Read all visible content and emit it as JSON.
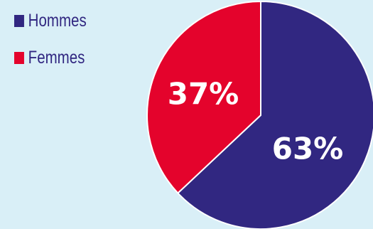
{
  "colors": {
    "background": "#d9eff7",
    "hommes": "#312781",
    "femmes": "#e4032c",
    "label": "#ffffff",
    "slice_border": "#ffffff"
  },
  "chart_data": {
    "type": "pie",
    "title": "",
    "categories": [
      "Hommes",
      "Femmes"
    ],
    "values": [
      63,
      37
    ],
    "labels": [
      "63%",
      "37%"
    ],
    "start_angle_deg": 0,
    "direction": "clockwise",
    "legend_position": "top-left"
  }
}
